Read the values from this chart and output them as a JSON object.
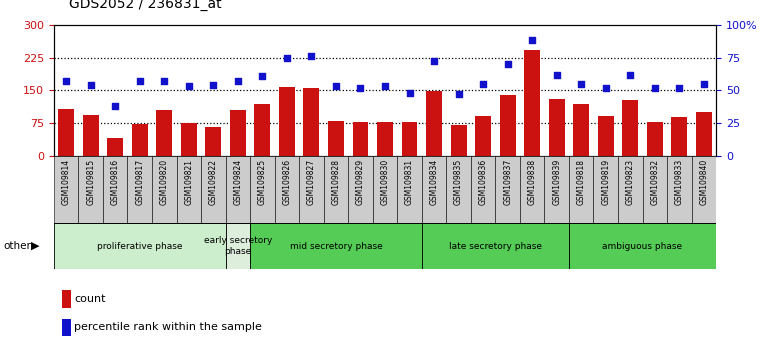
{
  "title": "GDS2052 / 236831_at",
  "samples": [
    "GSM109814",
    "GSM109815",
    "GSM109816",
    "GSM109817",
    "GSM109820",
    "GSM109821",
    "GSM109822",
    "GSM109824",
    "GSM109825",
    "GSM109826",
    "GSM109827",
    "GSM109828",
    "GSM109829",
    "GSM109830",
    "GSM109831",
    "GSM109834",
    "GSM109835",
    "GSM109836",
    "GSM109837",
    "GSM109838",
    "GSM109839",
    "GSM109818",
    "GSM109819",
    "GSM109823",
    "GSM109832",
    "GSM109833",
    "GSM109840"
  ],
  "counts": [
    108,
    93,
    40,
    72,
    105,
    75,
    67,
    105,
    118,
    158,
    155,
    80,
    78,
    78,
    78,
    148,
    70,
    90,
    140,
    242,
    130,
    118,
    90,
    128,
    78,
    88,
    100
  ],
  "percentile_ranks": [
    57,
    54,
    38,
    57,
    57,
    53,
    54,
    57,
    61,
    75,
    76,
    53,
    52,
    53,
    48,
    72,
    47,
    55,
    70,
    88,
    62,
    55,
    52,
    62,
    52,
    52,
    55
  ],
  "bar_color": "#cc1111",
  "dot_color": "#1111cc",
  "ylim_left": [
    0,
    300
  ],
  "ylim_right": [
    0,
    100
  ],
  "yticks_left": [
    0,
    75,
    150,
    225,
    300
  ],
  "ytick_labels_left": [
    "0",
    "75",
    "150",
    "225",
    "300"
  ],
  "yticks_right": [
    0,
    25,
    50,
    75,
    100
  ],
  "ytick_labels_right": [
    "0",
    "25",
    "50",
    "75",
    "100%"
  ],
  "background_color": "#ffffff",
  "left_axis_color": "#cc1111",
  "right_axis_color": "#1111cc",
  "phases": [
    {
      "label": "proliferative phase",
      "start": 0,
      "end": 7,
      "color": "#cceecc"
    },
    {
      "label": "early secretory\nphase",
      "start": 7,
      "end": 8,
      "color": "#ddeedd"
    },
    {
      "label": "mid secretory phase",
      "start": 8,
      "end": 15,
      "color": "#55cc55"
    },
    {
      "label": "late secretory phase",
      "start": 15,
      "end": 21,
      "color": "#55cc55"
    },
    {
      "label": "ambiguous phase",
      "start": 21,
      "end": 27,
      "color": "#55cc55"
    }
  ],
  "tick_bg_color": "#cccccc"
}
